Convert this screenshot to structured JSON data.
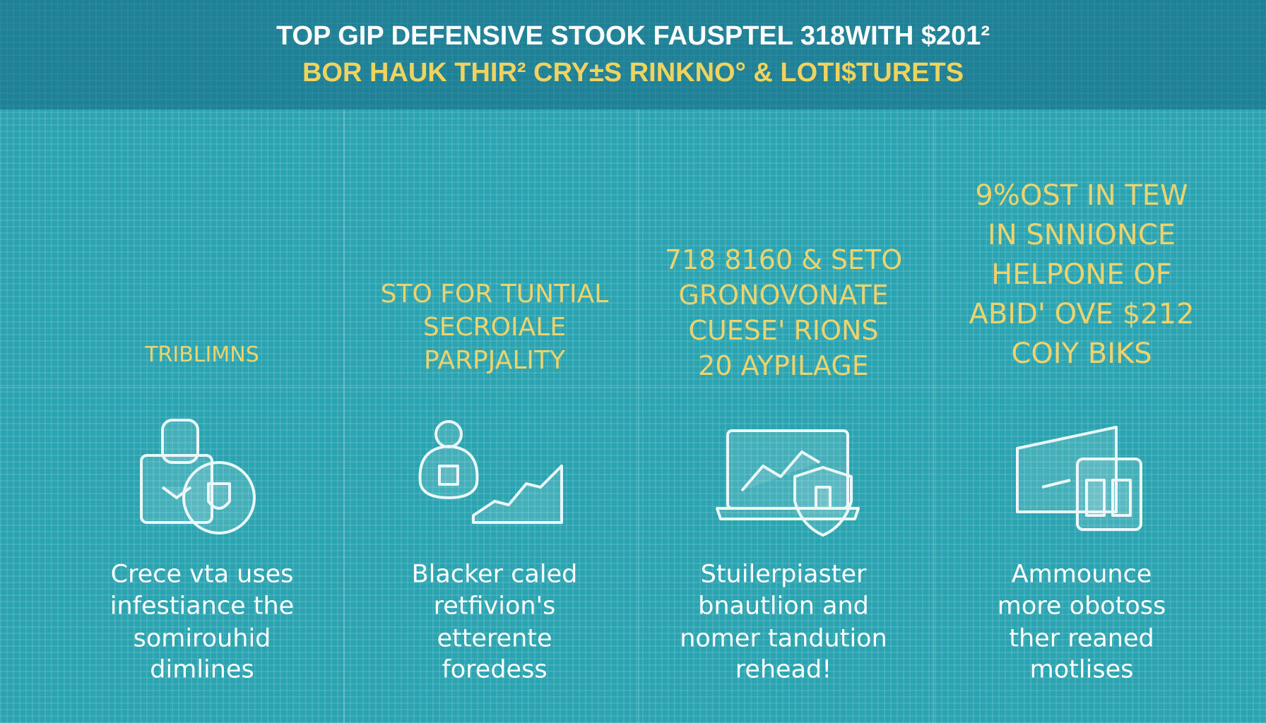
{
  "header": {
    "title_lines": [
      "TOP GIP DEFENSIVE STOOK FAUSPTEL 318WITH $201²",
      "BOR HAUK THIR² CRY±S RINKNO° & LOTI$TURETS"
    ]
  },
  "columns": [
    {
      "heading": [
        "TRIBLIMNS"
      ],
      "body": [
        "Crece vta uses",
        "infestiance the",
        "somirouhid",
        "dimlines"
      ]
    },
    {
      "heading": [
        "STO FOR TUNTIAL",
        "SECROIALE",
        "PARPJALITY"
      ],
      "body": [
        "Blacker caled",
        "retfivion's",
        "etterente",
        "foredess"
      ]
    },
    {
      "heading": [
        "718 8160 & SETO",
        "GRONOVONATE",
        "CUESE' RIONS",
        "20 AYPILAGE"
      ],
      "body": [
        "Stuilerpiaster",
        "bnautlion and",
        "nomer tandution",
        "rehead!"
      ]
    },
    {
      "heading": [
        "9%OST IN TEW",
        "IN SNNIONCE",
        "HELPONE OF",
        "ABID' OVE $212",
        "COIY BIKS"
      ],
      "body": [
        "Ammounce",
        "more obotoss",
        "ther reaned",
        "motlises"
      ]
    }
  ]
}
